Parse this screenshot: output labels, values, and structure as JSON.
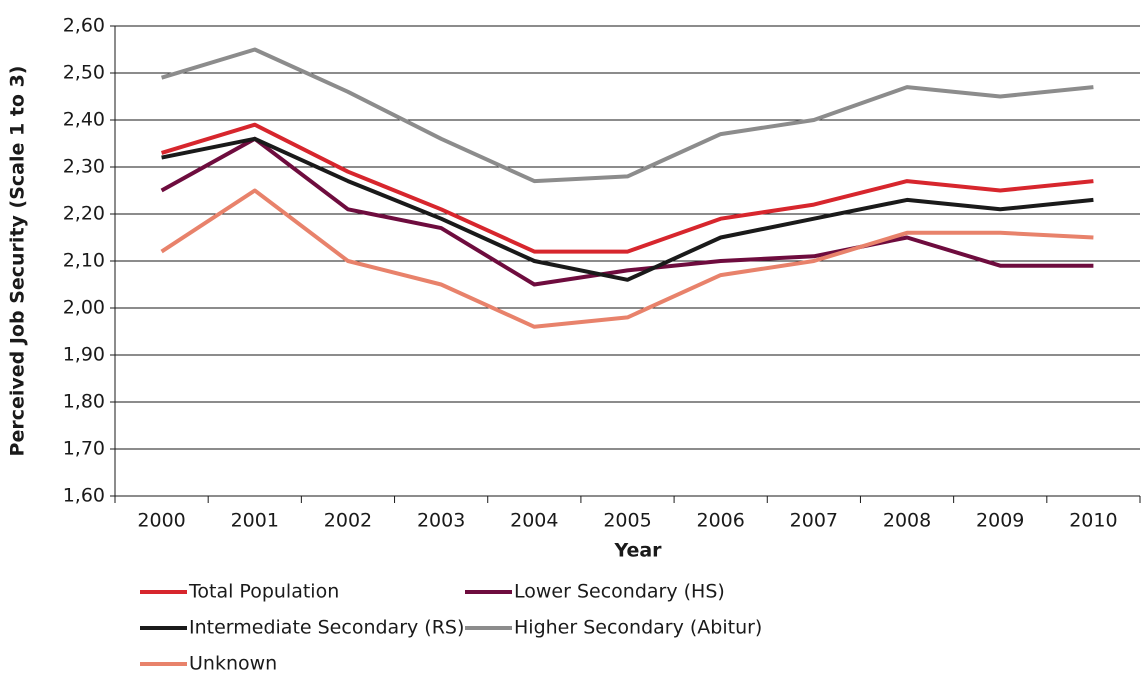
{
  "chart_data": {
    "type": "line",
    "x_label": "Year",
    "y_label": "Perceived Job Security (Scale 1 to 3)",
    "categories": [
      "2000",
      "2001",
      "2002",
      "2003",
      "2004",
      "2005",
      "2006",
      "2007",
      "2008",
      "2009",
      "2010"
    ],
    "series": [
      {
        "name": "Total Population",
        "color": "#d7262d",
        "values": [
          2.33,
          2.39,
          2.29,
          2.21,
          2.12,
          2.12,
          2.19,
          2.22,
          2.27,
          2.25,
          2.27
        ]
      },
      {
        "name": "Lower Secondary (HS)",
        "color": "#6e0c3e",
        "values": [
          2.25,
          2.36,
          2.21,
          2.17,
          2.05,
          2.08,
          2.1,
          2.11,
          2.15,
          2.09,
          2.09
        ]
      },
      {
        "name": "Intermediate Secondary (RS)",
        "color": "#1a1a1a",
        "values": [
          2.32,
          2.36,
          2.27,
          2.19,
          2.1,
          2.06,
          2.15,
          2.19,
          2.23,
          2.21,
          2.23
        ]
      },
      {
        "name": "Higher Secondary (Abitur)",
        "color": "#8c8c8c",
        "values": [
          2.49,
          2.55,
          2.46,
          2.36,
          2.27,
          2.28,
          2.37,
          2.4,
          2.47,
          2.45,
          2.47
        ]
      },
      {
        "name": "Unknown",
        "color": "#e8826b",
        "values": [
          2.12,
          2.25,
          2.1,
          2.05,
          1.96,
          1.98,
          2.07,
          2.1,
          2.16,
          2.16,
          2.15
        ]
      }
    ],
    "ylim": [
      1.6,
      2.6
    ],
    "yticks": [
      {
        "value": 1.6,
        "label": "1,60"
      },
      {
        "value": 1.7,
        "label": "1,70"
      },
      {
        "value": 1.8,
        "label": "1,80"
      },
      {
        "value": 1.9,
        "label": "1,90"
      },
      {
        "value": 2.0,
        "label": "2,00"
      },
      {
        "value": 2.1,
        "label": "2,10"
      },
      {
        "value": 2.2,
        "label": "2,20"
      },
      {
        "value": 2.3,
        "label": "2,30"
      },
      {
        "value": 2.4,
        "label": "2,40"
      },
      {
        "value": 2.5,
        "label": "2,50"
      },
      {
        "value": 2.6,
        "label": "2,60"
      }
    ],
    "grid": true
  }
}
